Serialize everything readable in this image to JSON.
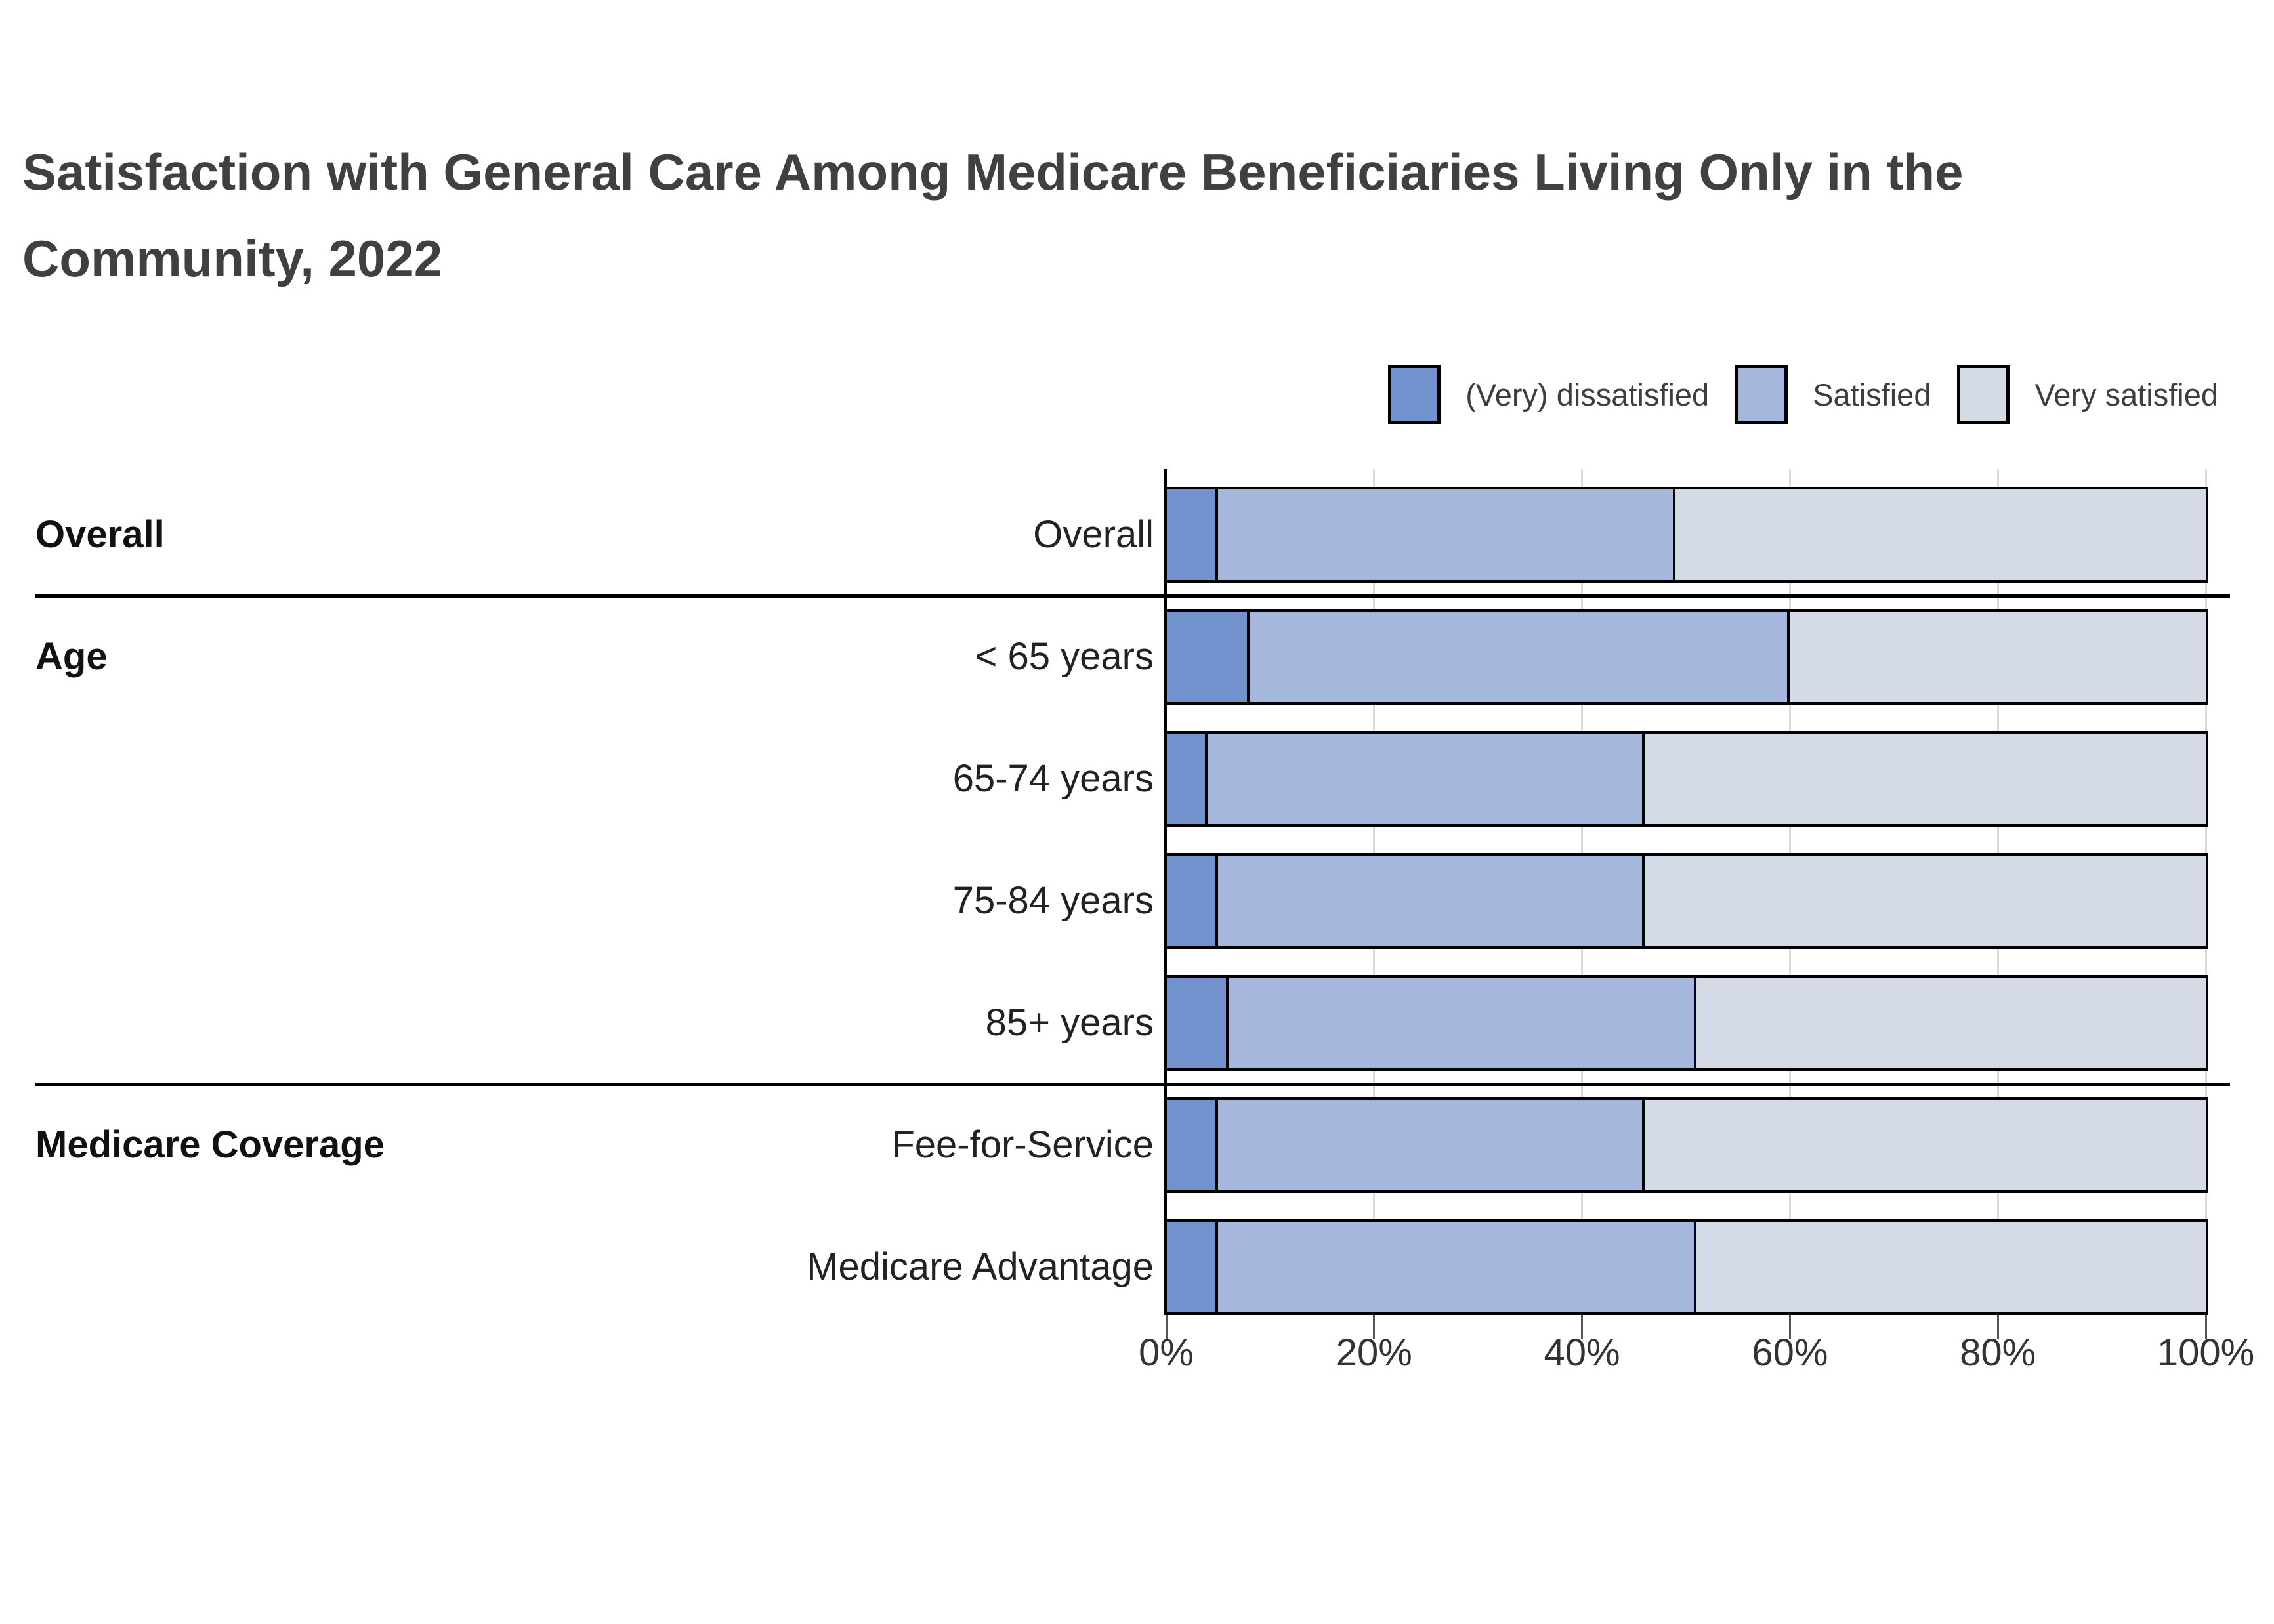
{
  "title": {
    "line1": "Satisfaction with General Care Among Medicare Beneficiaries Living Only in the",
    "line2": "Community, 2022"
  },
  "legend": {
    "items": [
      {
        "label": "(Very) dissatisfied",
        "color": "#7292ce"
      },
      {
        "label": "Satisfied",
        "color": "#a5b7dc"
      },
      {
        "label": "Very satisfied",
        "color": "#d4dae6"
      }
    ]
  },
  "groups": [
    {
      "label": "Overall",
      "first_row": 0
    },
    {
      "label": "Age",
      "first_row": 1
    },
    {
      "label": "Medicare Coverage",
      "first_row": 5
    }
  ],
  "chart_data": {
    "type": "bar",
    "orientation": "horizontal",
    "stacked": true,
    "unit": "%",
    "title": "Satisfaction with General Care Among Medicare Beneficiaries Living Only in the Community, 2022",
    "categories": [
      "Overall",
      "< 65 years",
      "65-74 years",
      "75-84 years",
      "85+ years",
      "Fee-for-Service",
      "Medicare Advantage"
    ],
    "category_groups": {
      "Overall": [
        "Overall"
      ],
      "Age": [
        "< 65 years",
        "65-74 years",
        "75-84 years",
        "85+ years"
      ],
      "Medicare Coverage": [
        "Fee-for-Service",
        "Medicare Advantage"
      ]
    },
    "series": [
      {
        "name": "(Very) dissatisfied",
        "color": "#7292ce",
        "values": [
          5,
          8,
          4,
          5,
          6,
          5,
          5
        ]
      },
      {
        "name": "Satisfied",
        "color": "#a5b7dc",
        "values": [
          44,
          52,
          42,
          41,
          45,
          41,
          46
        ]
      },
      {
        "name": "Very satisfied",
        "color": "#d4dae6",
        "values": [
          51,
          40,
          54,
          54,
          49,
          54,
          49
        ]
      }
    ],
    "x_axis": {
      "range": [
        0,
        100
      ],
      "ticks": [
        0,
        20,
        40,
        60,
        80,
        100
      ],
      "tick_labels": [
        "0%",
        "20%",
        "40%",
        "60%",
        "80%",
        "100%"
      ],
      "grid": true
    },
    "legend_position": "top-right"
  },
  "colors": {
    "dissatisfied": "#7292ce",
    "satisfied": "#a5b7dc",
    "very_satisfied": "#d4dae6",
    "bar_outline": "#000000",
    "gridline": "#d9d9d9",
    "title_text": "#404040",
    "label_text": "#222222",
    "background": "#ffffff"
  }
}
